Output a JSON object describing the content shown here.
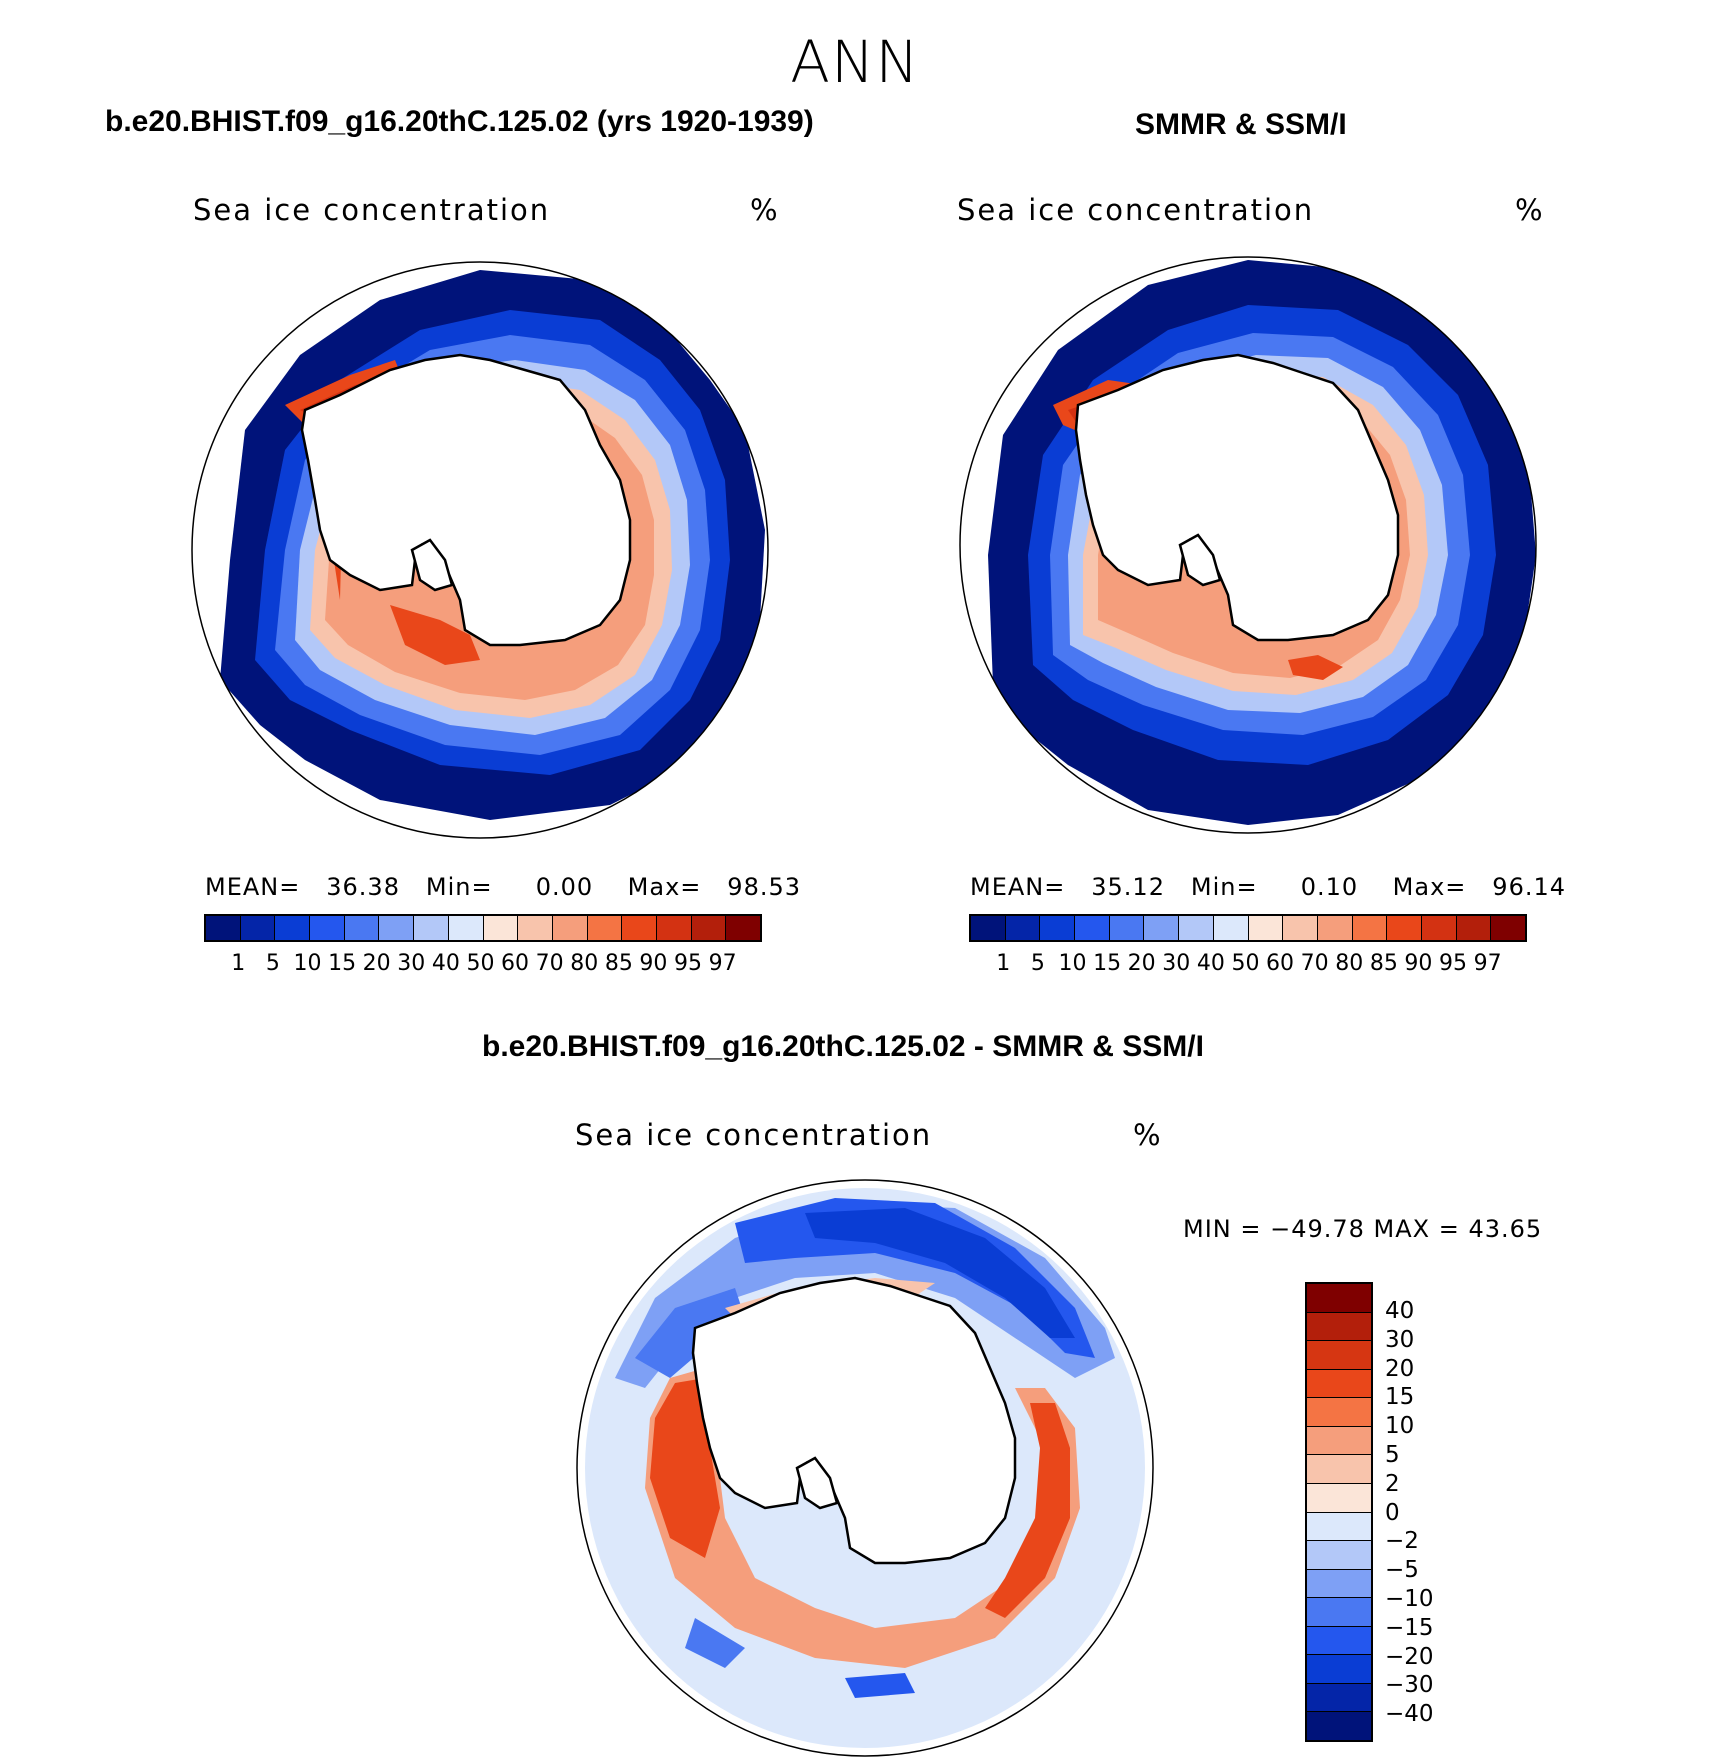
{
  "title": "ANN",
  "panels": {
    "model": {
      "case_title": "b.e20.BHIST.f09_g16.20thC.125.02 (yrs 1920-1939)",
      "variable": "Sea ice concentration",
      "unit": "%",
      "stats": {
        "mean_label": "MEAN=",
        "mean": "36.38",
        "min_label": "Min=",
        "min": "0.00",
        "max_label": "Max=",
        "max": "98.53"
      }
    },
    "obs": {
      "case_title": "SMMR & SSM/I",
      "variable": "Sea ice concentration",
      "unit": "%",
      "stats": {
        "mean_label": "MEAN=",
        "mean": "35.12",
        "min_label": "Min=",
        "min": "0.10",
        "max_label": "Max=",
        "max": "96.14"
      }
    },
    "diff": {
      "case_title": "b.e20.BHIST.f09_g16.20thC.125.02 - SMMR & SSM/I",
      "variable": "Sea ice concentration",
      "unit": "%",
      "minmax": "MIN = −49.78 MAX =   43.65"
    }
  },
  "concentration_colorbar": {
    "levels": [
      "1",
      "5",
      "10",
      "15",
      "20",
      "30",
      "40",
      "50",
      "60",
      "70",
      "80",
      "85",
      "90",
      "95",
      "97"
    ],
    "colors": [
      "#00137a",
      "#0425a8",
      "#0a3dd4",
      "#2457ee",
      "#4a78f2",
      "#7ea0f5",
      "#b3c8f8",
      "#dce8fb",
      "#fbe5d8",
      "#f8c4ac",
      "#f59e7c",
      "#f47444",
      "#e9471a",
      "#d33212",
      "#b31f0b",
      "#7f0000"
    ]
  },
  "difference_colorbar": {
    "levels": [
      "40",
      "30",
      "20",
      "15",
      "10",
      "5",
      "2",
      "0",
      "−2",
      "−5",
      "−10",
      "−15",
      "−20",
      "−30",
      "−40"
    ],
    "colors": [
      "#7f0000",
      "#b31f0b",
      "#d63612",
      "#e9471a",
      "#f47444",
      "#f59e7c",
      "#f8c4ac",
      "#fbe5d8",
      "#dce8fb",
      "#b3c8f8",
      "#7ea0f5",
      "#4a78f2",
      "#2457ee",
      "#0a3dd4",
      "#0425a8",
      "#00137a"
    ]
  }
}
